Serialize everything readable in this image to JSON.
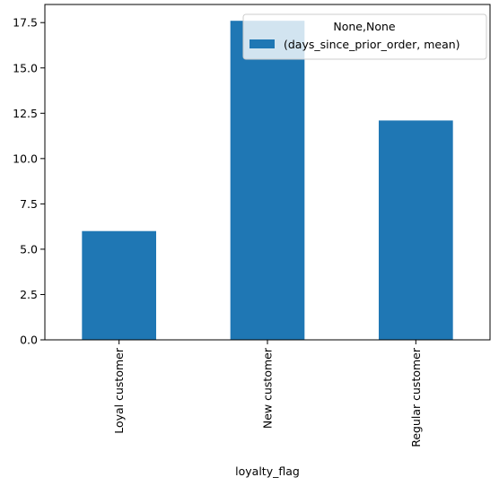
{
  "chart_data": {
    "type": "bar",
    "categories": [
      "Loyal customer",
      "New customer",
      "Regular customer"
    ],
    "series": [
      {
        "name": "(days_since_prior_order, mean)",
        "values": [
          6.0,
          17.6,
          12.1
        ],
        "color": "#1f77b4"
      }
    ],
    "xlabel": "loyalty_flag",
    "ylabel": "",
    "ylim": [
      0,
      18.5
    ],
    "yticks": [
      0.0,
      2.5,
      5.0,
      7.5,
      10.0,
      12.5,
      15.0,
      17.5
    ],
    "legend": {
      "title": "None,None",
      "placement": "top-right"
    },
    "grid": false
  }
}
